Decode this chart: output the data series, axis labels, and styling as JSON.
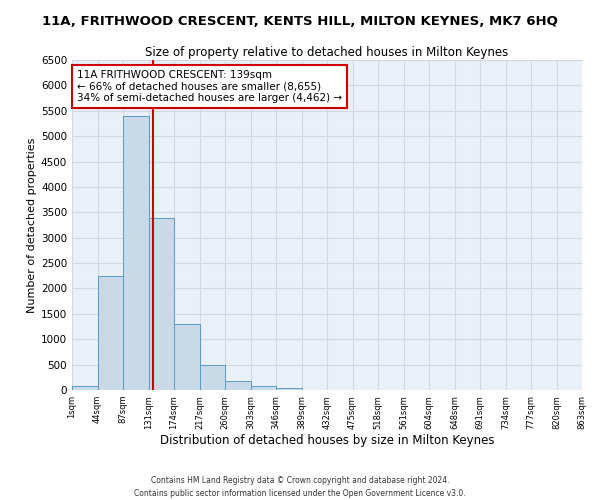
{
  "title": "11A, FRITHWOOD CRESCENT, KENTS HILL, MILTON KEYNES, MK7 6HQ",
  "subtitle": "Size of property relative to detached houses in Milton Keynes",
  "xlabel": "Distribution of detached houses by size in Milton Keynes",
  "ylabel": "Number of detached properties",
  "bar_values": [
    75,
    2250,
    5400,
    3380,
    1300,
    490,
    185,
    75,
    40,
    0,
    0,
    0,
    0,
    0,
    0,
    0,
    0,
    0,
    0,
    0
  ],
  "bin_labels": [
    "1sqm",
    "44sqm",
    "87sqm",
    "131sqm",
    "174sqm",
    "217sqm",
    "260sqm",
    "303sqm",
    "346sqm",
    "389sqm",
    "432sqm",
    "475sqm",
    "518sqm",
    "561sqm",
    "604sqm",
    "648sqm",
    "691sqm",
    "734sqm",
    "777sqm",
    "820sqm",
    "863sqm"
  ],
  "bar_color": "#c9d9e8",
  "bar_edge_color": "#5a9bc7",
  "grid_color": "#d0d8e8",
  "bg_color": "#eaf0f8",
  "annotation_text": "11A FRITHWOOD CRESCENT: 139sqm\n← 66% of detached houses are smaller (8,655)\n34% of semi-detached houses are larger (4,462) →",
  "annotation_box_color": "#ffffff",
  "annotation_box_edge": "#cc0000",
  "ylim": [
    0,
    6500
  ],
  "yticks": [
    0,
    500,
    1000,
    1500,
    2000,
    2500,
    3000,
    3500,
    4000,
    4500,
    5000,
    5500,
    6000,
    6500
  ],
  "footer_line1": "Contains HM Land Registry data © Crown copyright and database right 2024.",
  "footer_line2": "Contains public sector information licensed under the Open Government Licence v3.0."
}
